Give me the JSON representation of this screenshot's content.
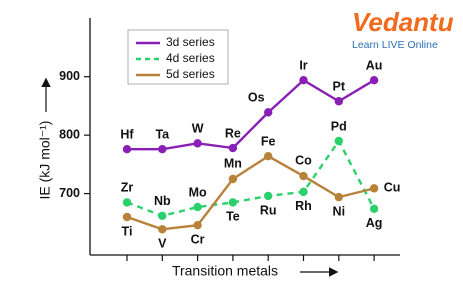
{
  "chart_data": {
    "type": "line",
    "ylabel": "IE (kJ mol⁻¹)",
    "xlabel": "Transition metals",
    "categories": [
      null,
      null,
      null,
      null,
      null,
      null,
      null,
      null
    ],
    "ylim": [
      595,
      997
    ],
    "yticks": [
      700,
      800,
      900
    ],
    "series": [
      {
        "name": "3d series",
        "color": "#8a1fb5",
        "style": "solid",
        "labels": [
          "Hf",
          "Ta",
          "W",
          "Re",
          "Os",
          "Ir",
          "Pt",
          "Au"
        ],
        "values": [
          776,
          776,
          786,
          778,
          839,
          894,
          858,
          894
        ]
      },
      {
        "name": "4d series",
        "color": "#2bd06a",
        "style": "dashed",
        "labels": [
          "Zr",
          "Nb",
          "Mo",
          "Te",
          "Ru",
          "Rh",
          "Pd",
          "Ag"
        ],
        "values": [
          685,
          662,
          677,
          685,
          696,
          703,
          790,
          674
        ]
      },
      {
        "name": "5d series",
        "color": "#b8823a",
        "style": "solid",
        "labels": [
          "Ti",
          "V",
          "Cr",
          "Mn",
          "Fe",
          "Co",
          "Ni",
          "Cu"
        ],
        "values": [
          660,
          639,
          646,
          725,
          764,
          730,
          694,
          709
        ]
      }
    ]
  },
  "logo": {
    "name": "Vedantu",
    "tagline": "Learn LIVE Online"
  }
}
